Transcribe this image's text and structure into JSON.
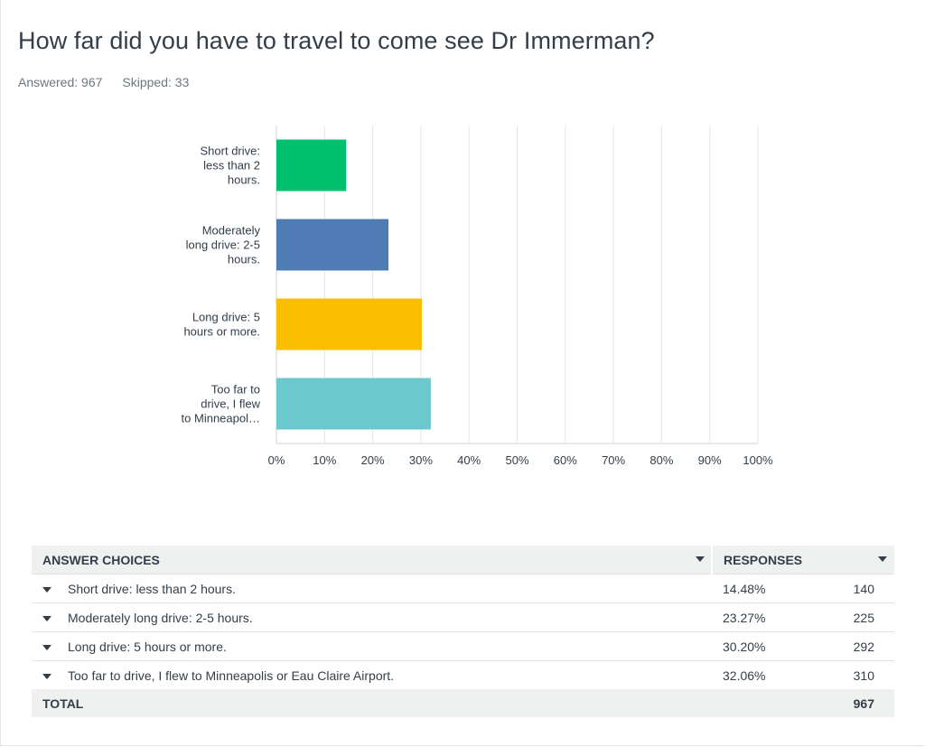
{
  "question": {
    "title": "How far did you have to travel to come see Dr Immerman?",
    "answered_label": "Answered: 967",
    "skipped_label": "Skipped: 33"
  },
  "colors": {
    "short": "#00bf6f",
    "moderate": "#507cb6",
    "long": "#f9be00",
    "flew": "#6bc8cd",
    "grid": "#e6e6e6"
  },
  "chart_data": {
    "type": "bar",
    "orientation": "horizontal",
    "categories": [
      [
        "Short drive:",
        "less than 2",
        "hours."
      ],
      [
        "Moderately",
        "long drive: 2-5",
        "hours."
      ],
      [
        "Long drive: 5",
        "hours or more."
      ],
      [
        "Too far to",
        "drive, I flew",
        "to Minneapol…"
      ]
    ],
    "values": [
      14.48,
      23.27,
      30.2,
      32.06
    ],
    "xlim": [
      0,
      100
    ],
    "xticks": [
      "0%",
      "10%",
      "20%",
      "30%",
      "40%",
      "50%",
      "60%",
      "70%",
      "80%",
      "90%",
      "100%"
    ],
    "grid": true
  },
  "table": {
    "header_choices": "ANSWER CHOICES",
    "header_responses": "RESPONSES",
    "rows": [
      {
        "choice": "Short drive: less than 2 hours.",
        "percent": "14.48%",
        "count": "140"
      },
      {
        "choice": "Moderately long drive: 2-5 hours.",
        "percent": "23.27%",
        "count": "225"
      },
      {
        "choice": "Long drive: 5 hours or more.",
        "percent": "30.20%",
        "count": "292"
      },
      {
        "choice": "Too far to drive, I flew to Minneapolis or Eau Claire Airport.",
        "percent": "32.06%",
        "count": "310"
      }
    ],
    "total_label": "TOTAL",
    "total_count": "967"
  }
}
